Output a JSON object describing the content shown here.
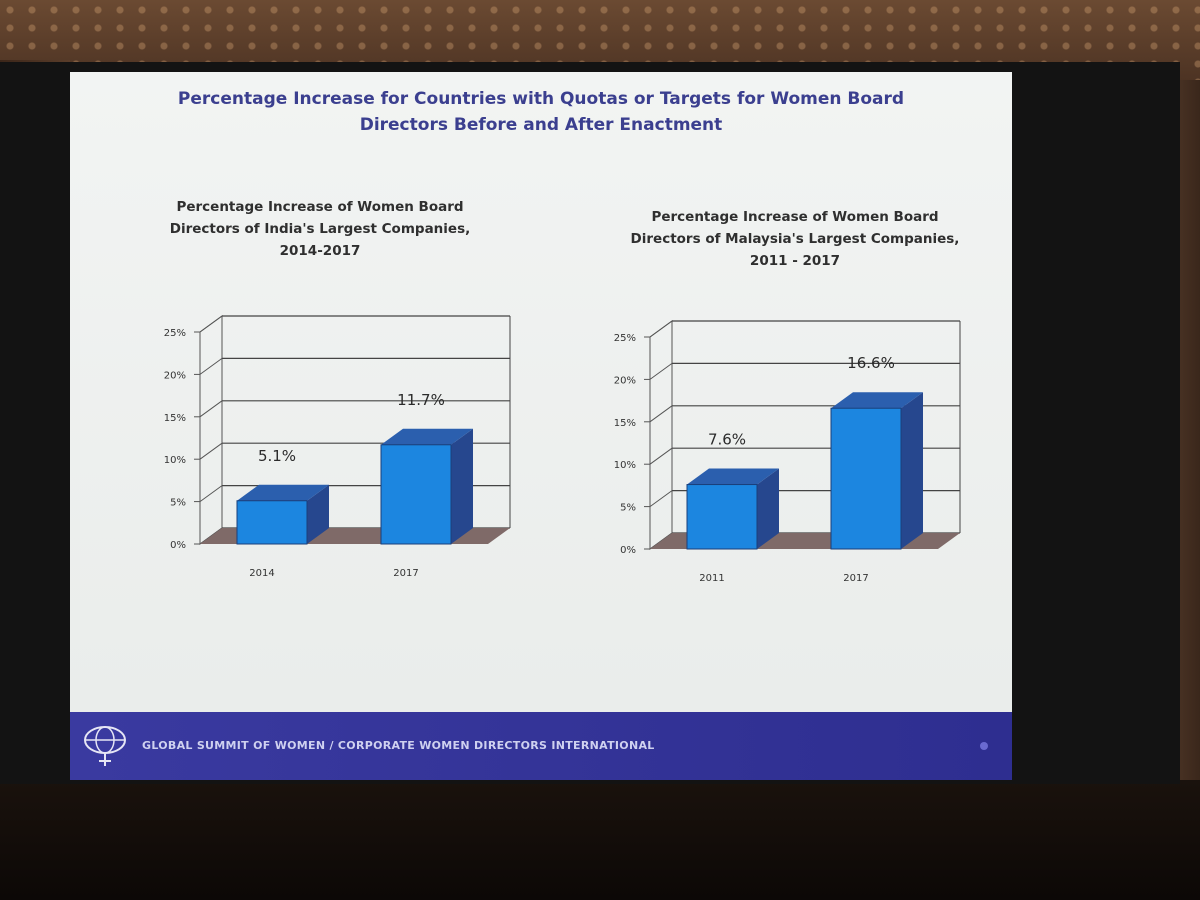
{
  "slide": {
    "title": "Percentage Increase for Countries with Quotas or Targets for Women Board\nDirectors Before and After Enactment",
    "footer_text": "GLOBAL SUMMIT OF WOMEN / CORPORATE WOMEN DIRECTORS INTERNATIONAL"
  },
  "colors": {
    "bar_front": "#1c86e0",
    "bar_top": "#2b5fae",
    "bar_side": "#26478e",
    "floor": "#7f6a68",
    "title": "#3b3f8f",
    "footer": "#3a3aa0"
  },
  "chart_data": [
    {
      "type": "bar",
      "title": "Percentage Increase of Women Board\nDirectors of India's Largest Companies,\n2014-2017",
      "categories": [
        "2014",
        "2017"
      ],
      "values": [
        5.1,
        11.7
      ],
      "value_labels": [
        "5.1%",
        "11.7%"
      ],
      "y_ticks": [
        "0%",
        "5%",
        "10%",
        "15%",
        "20%",
        "25%"
      ],
      "ylim": [
        0,
        25
      ],
      "grid": true,
      "style": "3d"
    },
    {
      "type": "bar",
      "title": "Percentage Increase of Women Board\nDirectors of Malaysia's Largest Companies,\n2011 - 2017",
      "categories": [
        "2011",
        "2017"
      ],
      "values": [
        7.6,
        16.6
      ],
      "value_labels": [
        "7.6%",
        "16.6%"
      ],
      "y_ticks": [
        "0%",
        "5%",
        "10%",
        "15%",
        "20%",
        "25%"
      ],
      "ylim": [
        0,
        25
      ],
      "grid": true,
      "style": "3d"
    }
  ]
}
